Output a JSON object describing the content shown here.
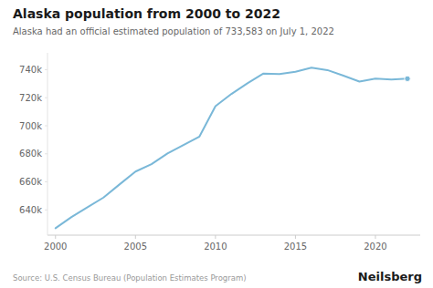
{
  "chart_data": {
    "type": "line",
    "title": "Alaska population from 2000 to 2022",
    "subtitle": "Alaska had an official estimated population of 733,583 on July 1, 2022",
    "annotations": [
      "Source: U.S. Census Bureau (Population Estimates Program)",
      "Neilsberg"
    ],
    "x": [
      2000,
      2001,
      2002,
      2003,
      2004,
      2005,
      2006,
      2007,
      2008,
      2009,
      2010,
      2011,
      2012,
      2013,
      2014,
      2015,
      2016,
      2017,
      2018,
      2019,
      2020,
      2021,
      2022
    ],
    "values": [
      626932,
      634892,
      641862,
      648818,
      658155,
      667325,
      672579,
      680300,
      686293,
      692314,
      713982,
      722713,
      730307,
      737259,
      736879,
      738565,
      741456,
      739700,
      735720,
      731545,
      733583,
      732923,
      733583
    ],
    "color": "#7ab8d8",
    "xlim": [
      1999.5,
      2022.8
    ],
    "ylim": [
      622000,
      752000
    ],
    "xticks": [
      2000,
      2005,
      2010,
      2015,
      2020
    ],
    "yticks": [
      {
        "value": 640000,
        "label": "640k"
      },
      {
        "value": 660000,
        "label": "660k"
      },
      {
        "value": 680000,
        "label": "680k"
      },
      {
        "value": 700000,
        "label": "700k"
      },
      {
        "value": 720000,
        "label": "720k"
      },
      {
        "value": 740000,
        "label": "740k"
      }
    ],
    "grid": false
  }
}
